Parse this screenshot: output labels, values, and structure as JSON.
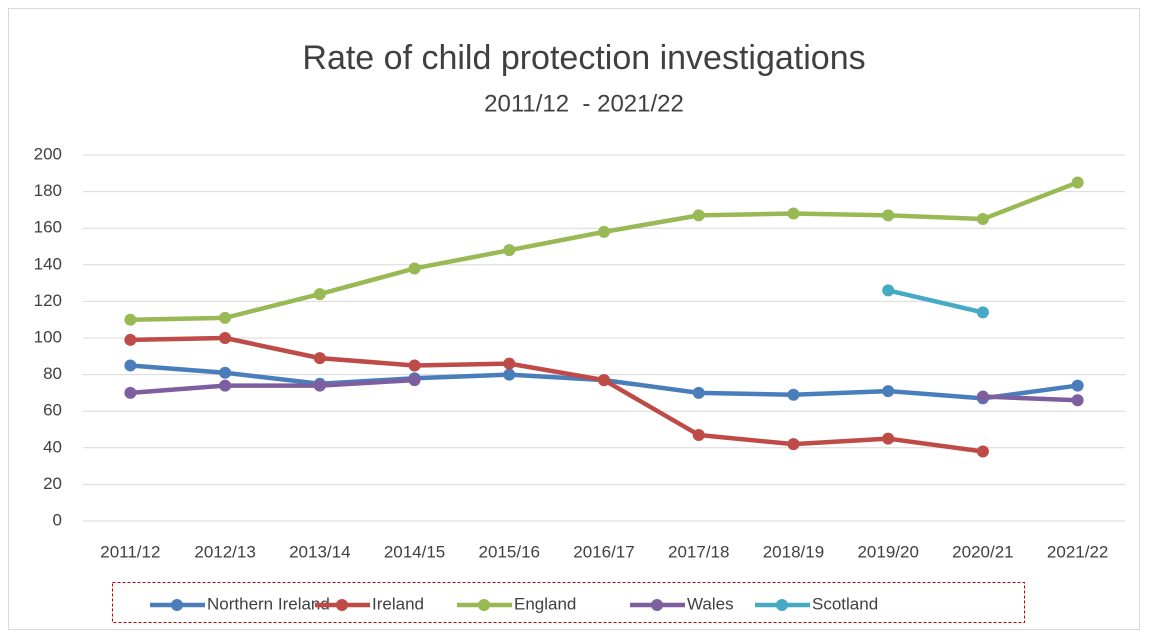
{
  "chart_data": {
    "type": "line",
    "title": "Rate of child protection investigations",
    "subtitle": "2011/12  - 2021/22",
    "categories": [
      "2011/12",
      "2012/13",
      "2013/14",
      "2014/15",
      "2015/16",
      "2016/17",
      "2017/18",
      "2018/19",
      "2019/20",
      "2020/21",
      "2021/22"
    ],
    "series": [
      {
        "name": "Northern Ireland",
        "color": "#4a7ebb",
        "values": [
          85,
          81,
          75,
          78,
          80,
          77,
          70,
          69,
          71,
          67,
          74
        ]
      },
      {
        "name": "Ireland",
        "color": "#be4b48",
        "values": [
          99,
          100,
          89,
          85,
          86,
          77,
          47,
          42,
          45,
          38,
          null
        ]
      },
      {
        "name": "England",
        "color": "#98b954",
        "values": [
          110,
          111,
          124,
          138,
          148,
          158,
          167,
          168,
          167,
          165,
          185
        ]
      },
      {
        "name": "Wales",
        "color": "#7d5fa0",
        "values": [
          70,
          74,
          74,
          77,
          null,
          null,
          null,
          null,
          null,
          68,
          66
        ]
      },
      {
        "name": "Scotland",
        "color": "#46aac5",
        "values": [
          null,
          null,
          null,
          null,
          null,
          null,
          null,
          null,
          126,
          114,
          null
        ]
      }
    ],
    "ylim": [
      0,
      200
    ],
    "yticks": [
      0,
      20,
      40,
      60,
      80,
      100,
      120,
      140,
      160,
      180,
      200
    ],
    "grid": true,
    "legend": "bottom"
  }
}
